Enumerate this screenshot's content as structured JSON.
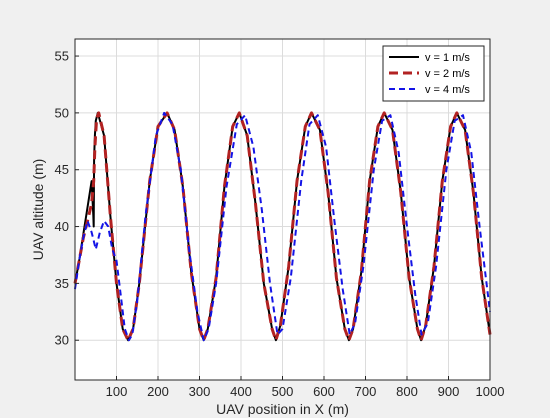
{
  "chart_data": {
    "type": "line",
    "title": "",
    "xlabel": "UAV position in X (m)",
    "ylabel": "UAV altitude (m)",
    "xlim": [
      0,
      1000
    ],
    "ylim": [
      26.5,
      56.5
    ],
    "xticks": [
      100,
      200,
      300,
      400,
      500,
      600,
      700,
      800,
      900,
      1000
    ],
    "yticks": [
      30,
      35,
      40,
      45,
      50,
      55
    ],
    "grid": true,
    "legend_position": "top-right",
    "series": [
      {
        "name": "v = 1 m/s",
        "color": "#000000",
        "style": "solid",
        "x": [
          0,
          10,
          25,
          40,
          44,
          45,
          46,
          48,
          50,
          55,
          70,
          85,
          100,
          115,
          128,
          140,
          155,
          180,
          200,
          222,
          240,
          260,
          280,
          300,
          310,
          320,
          340,
          360,
          380,
          396,
          415,
          435,
          455,
          475,
          484,
          495,
          515,
          535,
          555,
          570,
          590,
          610,
          630,
          650,
          660,
          670,
          690,
          710,
          730,
          745,
          765,
          785,
          805,
          825,
          834,
          845,
          865,
          885,
          905,
          920,
          940,
          960,
          980,
          1000
        ],
        "y": [
          35,
          37,
          40.5,
          44,
          41,
          40,
          46,
          48,
          49.3,
          50,
          48,
          41,
          35,
          31,
          30,
          31,
          35,
          44,
          48.8,
          50,
          48.5,
          43.5,
          36,
          31,
          30,
          31,
          35.5,
          43.5,
          48.8,
          50,
          48,
          42,
          35,
          31,
          30,
          31.3,
          36.5,
          44,
          48.8,
          50,
          48.5,
          43,
          35.5,
          31,
          30,
          31,
          36,
          44,
          48.8,
          50,
          48.5,
          43,
          35.5,
          31,
          30,
          31.3,
          36.5,
          44,
          48.8,
          50,
          48.5,
          43,
          35.5,
          30.5
        ]
      },
      {
        "name": "v = 2 m/s",
        "color": "#b22222",
        "style": "dashed",
        "x": [
          0,
          10,
          20,
          30,
          40,
          45,
          48,
          52,
          57,
          70,
          85,
          100,
          115,
          128,
          140,
          155,
          180,
          200,
          222,
          240,
          260,
          280,
          300,
          310,
          320,
          340,
          360,
          380,
          396,
          415,
          435,
          455,
          475,
          484,
          495,
          515,
          535,
          555,
          570,
          590,
          610,
          630,
          650,
          660,
          670,
          690,
          710,
          730,
          745,
          765,
          785,
          805,
          825,
          834,
          845,
          865,
          885,
          905,
          920,
          940,
          960,
          980,
          1000
        ],
        "y": [
          35,
          37,
          39,
          40.5,
          42,
          44,
          47,
          49.5,
          50,
          48,
          41,
          35,
          31,
          30,
          31,
          35,
          44,
          48.8,
          50,
          48.5,
          43.5,
          36,
          31,
          30,
          31,
          35.5,
          43.5,
          48.8,
          50,
          48,
          42,
          35,
          31,
          30,
          31.3,
          36.5,
          44,
          48.8,
          50,
          48.5,
          43,
          35.5,
          31,
          30,
          31,
          36,
          44,
          48.8,
          50,
          48.5,
          43,
          35.5,
          31,
          30,
          31.3,
          36.5,
          44,
          48.8,
          50,
          48.5,
          43,
          35.5,
          30.5
        ]
      },
      {
        "name": "v = 4 m/s",
        "color": "#1414e6",
        "style": "dashed",
        "x": [
          0,
          10,
          20,
          30,
          40,
          50,
          60,
          70,
          80,
          90,
          100,
          110,
          120,
          130,
          138,
          150,
          170,
          195,
          215,
          235,
          255,
          275,
          295,
          310,
          322,
          340,
          365,
          390,
          410,
          430,
          450,
          470,
          488,
          500,
          520,
          545,
          565,
          585,
          605,
          625,
          645,
          662,
          675,
          695,
          720,
          740,
          760,
          780,
          800,
          820,
          835,
          850,
          870,
          895,
          915,
          935,
          955,
          975,
          1000
        ],
        "y": [
          34.5,
          37,
          39,
          40.5,
          39.5,
          38,
          39.5,
          40.5,
          40,
          38,
          37,
          34,
          31,
          30,
          30.5,
          33.5,
          41,
          48,
          50,
          49,
          45,
          38,
          32.5,
          30,
          31,
          35,
          43.5,
          49,
          49.8,
          47,
          41.5,
          35,
          30.5,
          31,
          35.5,
          44,
          49,
          49.8,
          47,
          40.5,
          34.5,
          30.5,
          31.5,
          36.5,
          45,
          49.3,
          49.8,
          46.5,
          40,
          34,
          30.5,
          31.5,
          36.5,
          45,
          49.3,
          49.8,
          46.5,
          40,
          32.5
        ]
      }
    ]
  }
}
